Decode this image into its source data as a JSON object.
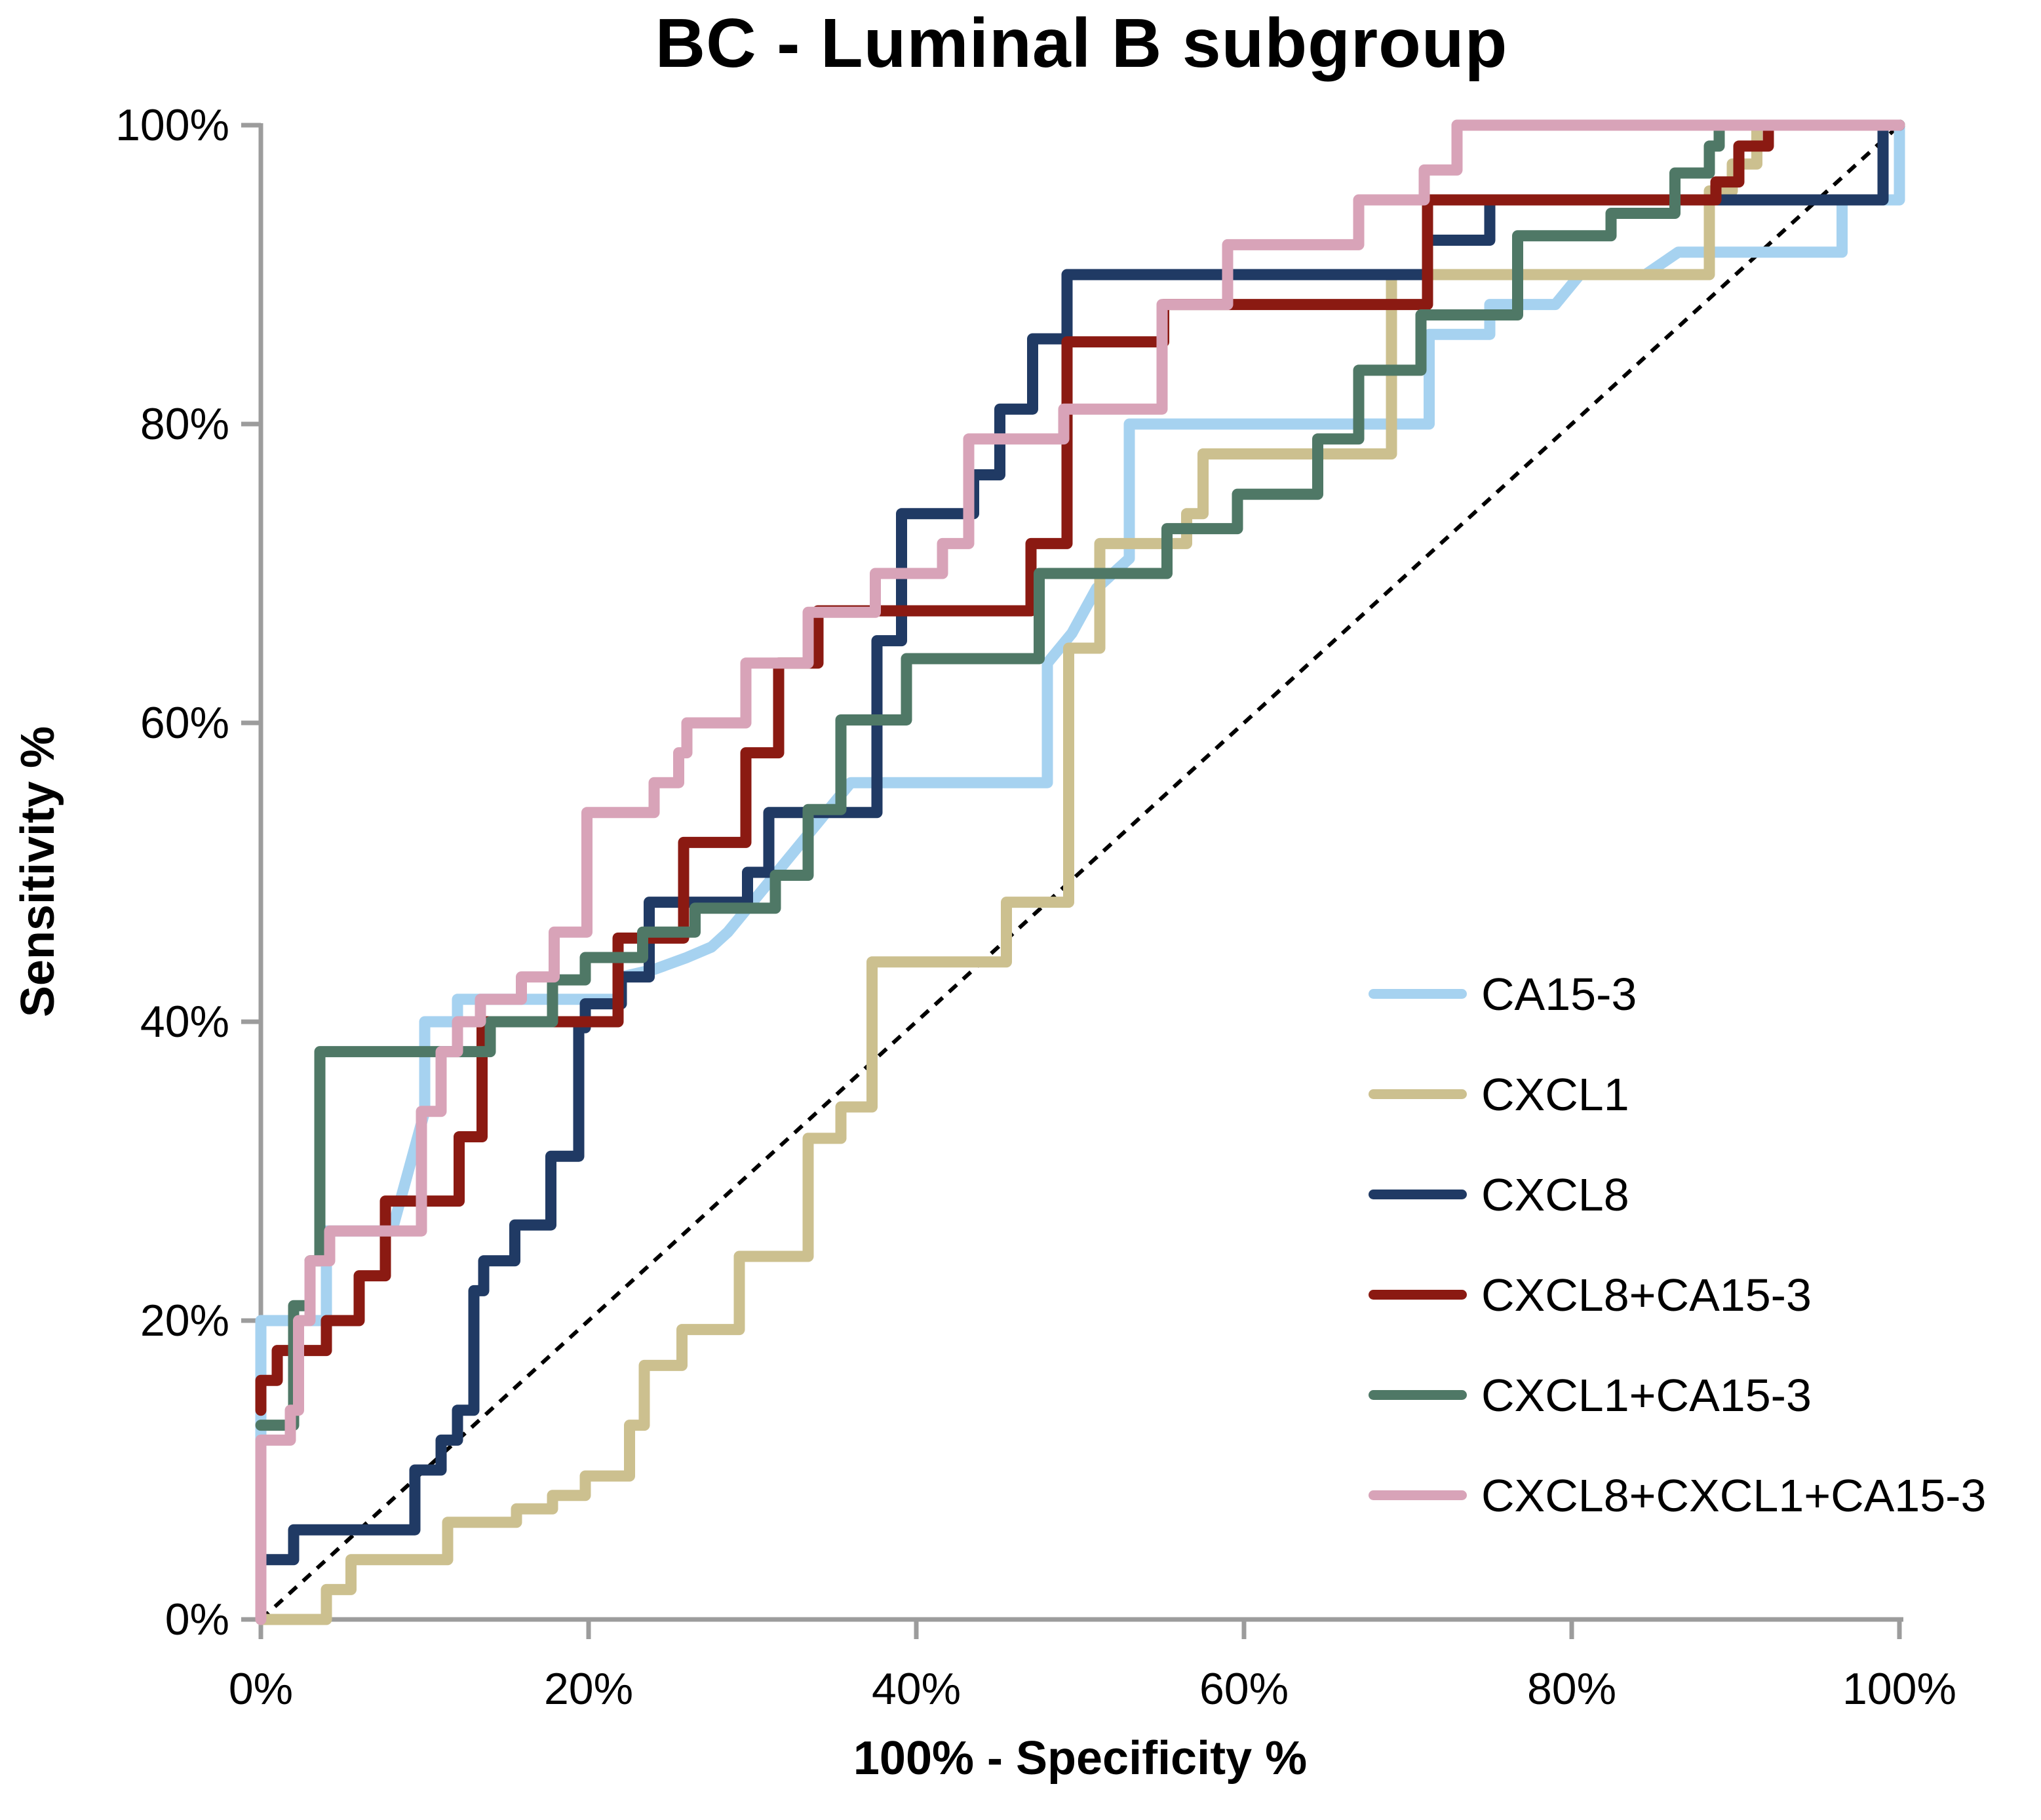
{
  "title": "BC - Luminal B subgroup",
  "axes": {
    "x_title": "100% - Specificity %",
    "y_title": "Sensitivity %",
    "x_tick_labels": [
      "0%",
      "20%",
      "40%",
      "60%",
      "80%",
      "100%"
    ],
    "y_tick_labels": [
      "0%",
      "20%",
      "40%",
      "60%",
      "80%",
      "100%"
    ],
    "x_tick_values": [
      0,
      20,
      40,
      60,
      80,
      100
    ],
    "y_tick_values": [
      0,
      20,
      40,
      60,
      80,
      100
    ],
    "axis_color": "#9c9c9c",
    "text_color": "#000000"
  },
  "chart_data": {
    "type": "line",
    "subtype": "roc-step-curves",
    "title": "BC - Luminal B subgroup",
    "xlabel": "100% - Specificity %",
    "ylabel": "Sensitivity %",
    "xlim": [
      0,
      100
    ],
    "ylim": [
      0,
      100
    ],
    "grid": false,
    "legend_position": "right-middle",
    "reference_line": {
      "name": "chance-diagonal",
      "style": "dashed",
      "color": "#000000",
      "points": [
        [
          0,
          0
        ],
        [
          100,
          100
        ]
      ]
    },
    "series": [
      {
        "name": "CA15-3",
        "color": "#a6d2f0",
        "points": [
          [
            0,
            0
          ],
          [
            0,
            20
          ],
          [
            4,
            20
          ],
          [
            4,
            26
          ],
          [
            8,
            26
          ],
          [
            9,
            30
          ],
          [
            10,
            34
          ],
          [
            10,
            40
          ],
          [
            12,
            40
          ],
          [
            12,
            41.5
          ],
          [
            22,
            41.5
          ],
          [
            22,
            43
          ],
          [
            24,
            43.5
          ],
          [
            26,
            44.3
          ],
          [
            27.5,
            45
          ],
          [
            28.5,
            46
          ],
          [
            30,
            48
          ],
          [
            31.5,
            50
          ],
          [
            33,
            52
          ],
          [
            34.5,
            54
          ],
          [
            36,
            56
          ],
          [
            48,
            56
          ],
          [
            48,
            64
          ],
          [
            49.5,
            66
          ],
          [
            51,
            69
          ],
          [
            53,
            71
          ],
          [
            53,
            80
          ],
          [
            71.3,
            80
          ],
          [
            71.3,
            86
          ],
          [
            75,
            86
          ],
          [
            75,
            88
          ],
          [
            79,
            88
          ],
          [
            80.5,
            90
          ],
          [
            84.5,
            90
          ],
          [
            86.5,
            91.5
          ],
          [
            96.5,
            91.5
          ],
          [
            96.5,
            95
          ],
          [
            100,
            95
          ],
          [
            100,
            100
          ]
        ]
      },
      {
        "name": "CXCL1",
        "color": "#ccc08f",
        "points": [
          [
            0,
            0
          ],
          [
            4,
            0
          ],
          [
            4,
            2
          ],
          [
            5.5,
            2
          ],
          [
            5.5,
            4
          ],
          [
            11.4,
            4
          ],
          [
            11.4,
            6.5
          ],
          [
            15.6,
            6.5
          ],
          [
            15.6,
            7.4
          ],
          [
            17.8,
            7.4
          ],
          [
            17.8,
            8.3
          ],
          [
            19.8,
            8.3
          ],
          [
            19.8,
            9.6
          ],
          [
            22.5,
            9.6
          ],
          [
            22.5,
            13
          ],
          [
            23.4,
            13
          ],
          [
            23.4,
            17
          ],
          [
            25.7,
            17
          ],
          [
            25.7,
            19.4
          ],
          [
            29.2,
            19.4
          ],
          [
            29.2,
            24.3
          ],
          [
            33.4,
            24.3
          ],
          [
            33.4,
            32.2
          ],
          [
            35.4,
            32.2
          ],
          [
            35.4,
            34.3
          ],
          [
            37.3,
            34.3
          ],
          [
            37.3,
            44
          ],
          [
            45.5,
            44
          ],
          [
            45.5,
            48
          ],
          [
            49.3,
            48
          ],
          [
            49.3,
            65
          ],
          [
            51.2,
            65
          ],
          [
            51.2,
            72
          ],
          [
            56.5,
            72
          ],
          [
            56.5,
            74
          ],
          [
            57.5,
            74
          ],
          [
            57.5,
            78
          ],
          [
            69,
            78
          ],
          [
            69,
            90
          ],
          [
            88.4,
            90
          ],
          [
            88.4,
            95.6
          ],
          [
            89.8,
            95.6
          ],
          [
            89.8,
            97.4
          ],
          [
            91.3,
            97.4
          ],
          [
            91.3,
            100
          ],
          [
            100,
            100
          ]
        ]
      },
      {
        "name": "CXCL8",
        "color": "#203a64",
        "points": [
          [
            0,
            4
          ],
          [
            2,
            4
          ],
          [
            2,
            6
          ],
          [
            9.4,
            6
          ],
          [
            9.4,
            10
          ],
          [
            11,
            10
          ],
          [
            11,
            12
          ],
          [
            12,
            12
          ],
          [
            12,
            14
          ],
          [
            13,
            14
          ],
          [
            13,
            22
          ],
          [
            13.6,
            22
          ],
          [
            13.6,
            24
          ],
          [
            15.5,
            24
          ],
          [
            15.5,
            26.4
          ],
          [
            17.7,
            26.4
          ],
          [
            17.7,
            31
          ],
          [
            19.4,
            31
          ],
          [
            19.4,
            39.6
          ],
          [
            19.8,
            39.6
          ],
          [
            19.8,
            41.2
          ],
          [
            22,
            41.2
          ],
          [
            22,
            43
          ],
          [
            23.7,
            43
          ],
          [
            23.7,
            48
          ],
          [
            29.7,
            48
          ],
          [
            29.7,
            50
          ],
          [
            31,
            50
          ],
          [
            31,
            54
          ],
          [
            37.6,
            54
          ],
          [
            37.6,
            65.5
          ],
          [
            39.1,
            65.5
          ],
          [
            39.1,
            74
          ],
          [
            43.5,
            74
          ],
          [
            43.5,
            76.6
          ],
          [
            45.1,
            76.6
          ],
          [
            45.1,
            81
          ],
          [
            47.1,
            81
          ],
          [
            47.1,
            85.7
          ],
          [
            49.2,
            85.7
          ],
          [
            49.2,
            90
          ],
          [
            71.2,
            90
          ],
          [
            71.2,
            92.3
          ],
          [
            75,
            92.3
          ],
          [
            75,
            95
          ],
          [
            99,
            95
          ],
          [
            99,
            100
          ],
          [
            100,
            100
          ]
        ]
      },
      {
        "name": "CXCL8+CA15-3",
        "color": "#8b1a12",
        "points": [
          [
            0,
            14
          ],
          [
            0,
            16
          ],
          [
            1,
            16
          ],
          [
            1,
            18
          ],
          [
            4,
            18
          ],
          [
            4,
            20
          ],
          [
            6,
            20
          ],
          [
            6,
            23
          ],
          [
            7.6,
            23
          ],
          [
            7.6,
            28
          ],
          [
            12.1,
            28
          ],
          [
            12.1,
            32.3
          ],
          [
            13.5,
            32.3
          ],
          [
            13.5,
            40
          ],
          [
            21.8,
            40
          ],
          [
            21.8,
            45.6
          ],
          [
            25.8,
            45.6
          ],
          [
            25.8,
            52
          ],
          [
            29.6,
            52
          ],
          [
            29.6,
            58
          ],
          [
            31.6,
            58
          ],
          [
            31.6,
            64
          ],
          [
            34,
            64
          ],
          [
            34,
            67.5
          ],
          [
            47,
            67.5
          ],
          [
            47,
            72
          ],
          [
            49.2,
            72
          ],
          [
            49.2,
            85.5
          ],
          [
            55.1,
            85.5
          ],
          [
            55.1,
            88
          ],
          [
            71.2,
            88
          ],
          [
            71.2,
            95
          ],
          [
            88.8,
            95
          ],
          [
            88.8,
            96.2
          ],
          [
            90.2,
            96.2
          ],
          [
            90.2,
            98.6
          ],
          [
            92,
            98.6
          ],
          [
            92,
            100
          ],
          [
            100,
            100
          ]
        ]
      },
      {
        "name": "CXCL1+CA15-3",
        "color": "#4f7866",
        "points": [
          [
            0,
            13
          ],
          [
            2,
            13
          ],
          [
            2,
            21
          ],
          [
            3,
            21
          ],
          [
            3,
            24
          ],
          [
            3.6,
            24
          ],
          [
            3.6,
            38
          ],
          [
            14,
            38
          ],
          [
            14,
            40
          ],
          [
            17.8,
            40
          ],
          [
            17.8,
            42.8
          ],
          [
            19.8,
            42.8
          ],
          [
            19.8,
            44.3
          ],
          [
            23.3,
            44.3
          ],
          [
            23.3,
            46
          ],
          [
            26.5,
            46
          ],
          [
            26.5,
            47.6
          ],
          [
            31.4,
            47.6
          ],
          [
            31.4,
            49.8
          ],
          [
            33.4,
            49.8
          ],
          [
            33.4,
            54.2
          ],
          [
            35.4,
            54.2
          ],
          [
            35.4,
            60.2
          ],
          [
            39.4,
            60.2
          ],
          [
            39.4,
            64.3
          ],
          [
            47.5,
            64.3
          ],
          [
            47.5,
            70
          ],
          [
            55.3,
            70
          ],
          [
            55.3,
            73
          ],
          [
            59.6,
            73
          ],
          [
            59.6,
            75.3
          ],
          [
            64.5,
            75.3
          ],
          [
            64.5,
            79
          ],
          [
            67,
            79
          ],
          [
            67,
            83.6
          ],
          [
            70.8,
            83.6
          ],
          [
            70.8,
            87.3
          ],
          [
            76.7,
            87.3
          ],
          [
            76.7,
            92.6
          ],
          [
            82.4,
            92.6
          ],
          [
            82.4,
            94.1
          ],
          [
            86.3,
            94.1
          ],
          [
            86.3,
            96.8
          ],
          [
            88.4,
            96.8
          ],
          [
            88.4,
            98.6
          ],
          [
            89,
            98.6
          ],
          [
            89,
            100
          ],
          [
            100,
            100
          ]
        ]
      },
      {
        "name": "CXCL8+CXCL1+CA15-3",
        "color": "#d8a3b8",
        "points": [
          [
            0,
            0
          ],
          [
            0,
            12
          ],
          [
            1.8,
            12
          ],
          [
            1.8,
            14
          ],
          [
            2.3,
            14
          ],
          [
            2.3,
            20
          ],
          [
            3,
            20
          ],
          [
            3,
            24
          ],
          [
            4.2,
            24
          ],
          [
            4.2,
            26
          ],
          [
            9.8,
            26
          ],
          [
            9.8,
            34
          ],
          [
            11,
            34
          ],
          [
            11,
            38
          ],
          [
            12,
            38
          ],
          [
            12,
            40
          ],
          [
            13.4,
            40
          ],
          [
            13.4,
            41.5
          ],
          [
            15.9,
            41.5
          ],
          [
            15.9,
            43
          ],
          [
            17.9,
            43
          ],
          [
            17.9,
            46
          ],
          [
            19.9,
            46
          ],
          [
            19.9,
            54
          ],
          [
            24,
            54
          ],
          [
            24,
            56
          ],
          [
            25.5,
            56
          ],
          [
            25.5,
            58
          ],
          [
            26,
            58
          ],
          [
            26,
            60
          ],
          [
            29.6,
            60
          ],
          [
            29.6,
            64
          ],
          [
            33.4,
            64
          ],
          [
            33.4,
            67.4
          ],
          [
            37.5,
            67.4
          ],
          [
            37.5,
            70
          ],
          [
            41.6,
            70
          ],
          [
            41.6,
            72
          ],
          [
            43.2,
            72
          ],
          [
            43.2,
            79
          ],
          [
            49,
            79
          ],
          [
            49,
            81
          ],
          [
            55,
            81
          ],
          [
            55,
            88
          ],
          [
            59,
            88
          ],
          [
            59,
            92
          ],
          [
            67,
            92
          ],
          [
            67,
            95
          ],
          [
            71,
            95
          ],
          [
            71,
            97
          ],
          [
            73,
            97
          ],
          [
            73,
            100
          ],
          [
            100,
            100
          ]
        ]
      }
    ]
  },
  "legend": {
    "items": [
      {
        "label": "CA15-3"
      },
      {
        "label": "CXCL1"
      },
      {
        "label": "CXCL8"
      },
      {
        "label": "CXCL8+CA15-3"
      },
      {
        "label": "CXCL1+CA15-3"
      },
      {
        "label": "CXCL8+CXCL1+CA15-3"
      }
    ]
  }
}
